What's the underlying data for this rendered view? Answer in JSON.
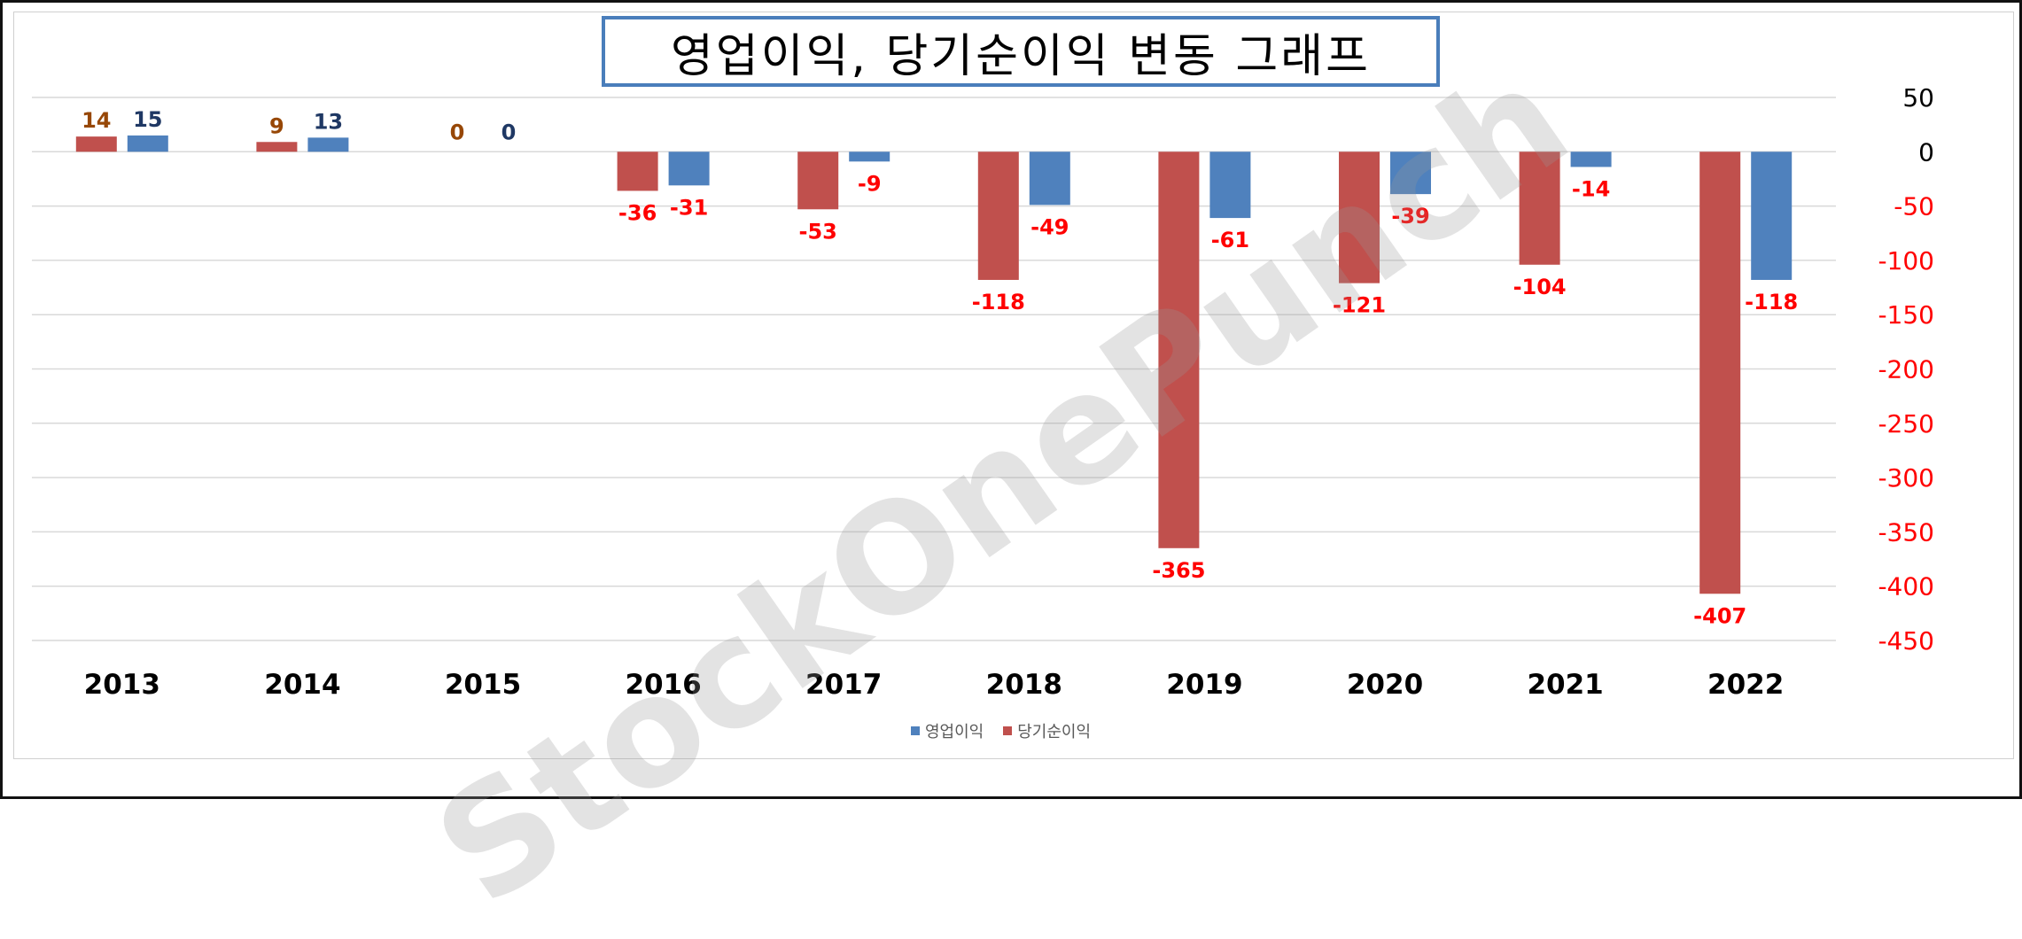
{
  "chart_data": {
    "type": "bar",
    "title": "영업이익, 당기순이익 변동 그래프",
    "categories": [
      "2013",
      "2014",
      "2015",
      "2016",
      "2017",
      "2018",
      "2019",
      "2020",
      "2021",
      "2022"
    ],
    "series": [
      {
        "name": "당기순이익",
        "color": "#c0504d",
        "values": [
          14,
          9,
          0,
          -36,
          -53,
          -118,
          -365,
          -121,
          -104,
          -407
        ]
      },
      {
        "name": "영업이익",
        "color": "#4f81bd",
        "values": [
          15,
          13,
          0,
          -31,
          -9,
          -49,
          -61,
          -39,
          -14,
          -118
        ]
      }
    ],
    "ylim": [
      -450,
      50
    ],
    "yticks": [
      50,
      0,
      -50,
      -100,
      -150,
      -200,
      -250,
      -300,
      -350,
      -400,
      -450
    ],
    "y_axis_side": "right",
    "grid": true,
    "legend_position": "bottom",
    "legend_order": [
      "영업이익",
      "당기순이익"
    ],
    "label_colors": {
      "positive_red_series": "#974706",
      "positive_blue_series": "#1f3864",
      "negative": "#ff0000",
      "axis_positive": "#000000",
      "axis_negative": "#ff0000"
    }
  },
  "watermark": "StockOnePunch"
}
